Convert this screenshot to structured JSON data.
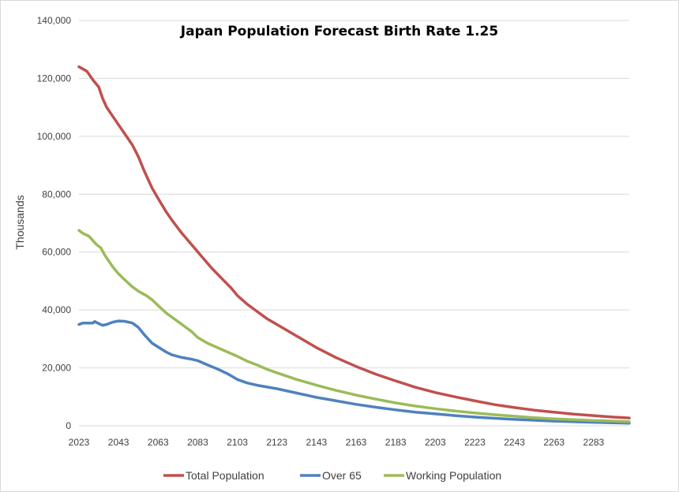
{
  "chart_data": {
    "type": "line",
    "title": "Japan Population Forecast Birth Rate 1.25",
    "xlabel": "",
    "ylabel": "Thousands",
    "xlim": [
      2023,
      2301
    ],
    "ylim": [
      0,
      140000
    ],
    "x_ticks": [
      "2023",
      "2043",
      "2063",
      "2083",
      "2103",
      "2123",
      "2143",
      "2163",
      "2183",
      "2203",
      "2223",
      "2243",
      "2263",
      "2283"
    ],
    "y_ticks": [
      "0",
      "20,000",
      "40,000",
      "60,000",
      "80,000",
      "100,000",
      "120,000",
      "140,000"
    ],
    "legend_position": "bottom",
    "series": [
      {
        "name": "Total Population",
        "color": "#c0504d",
        "points": [
          [
            2023,
            124000
          ],
          [
            2027,
            122500
          ],
          [
            2030,
            119500
          ],
          [
            2033,
            117000
          ],
          [
            2035,
            113000
          ],
          [
            2037,
            110000
          ],
          [
            2040,
            107000
          ],
          [
            2043,
            104000
          ],
          [
            2046,
            101000
          ],
          [
            2050,
            97000
          ],
          [
            2053,
            93000
          ],
          [
            2056,
            88000
          ],
          [
            2060,
            82000
          ],
          [
            2063,
            78500
          ],
          [
            2067,
            74000
          ],
          [
            2070,
            71000
          ],
          [
            2075,
            66500
          ],
          [
            2080,
            62500
          ],
          [
            2085,
            58500
          ],
          [
            2090,
            54500
          ],
          [
            2095,
            51000
          ],
          [
            2100,
            47500
          ],
          [
            2103,
            45000
          ],
          [
            2108,
            42000
          ],
          [
            2113,
            39500
          ],
          [
            2118,
            37000
          ],
          [
            2123,
            35000
          ],
          [
            2133,
            31000
          ],
          [
            2143,
            27000
          ],
          [
            2153,
            23500
          ],
          [
            2163,
            20500
          ],
          [
            2173,
            17800
          ],
          [
            2183,
            15500
          ],
          [
            2193,
            13300
          ],
          [
            2203,
            11500
          ],
          [
            2213,
            10000
          ],
          [
            2223,
            8600
          ],
          [
            2233,
            7300
          ],
          [
            2243,
            6300
          ],
          [
            2253,
            5400
          ],
          [
            2263,
            4700
          ],
          [
            2273,
            4000
          ],
          [
            2283,
            3500
          ],
          [
            2293,
            3000
          ],
          [
            2301,
            2700
          ]
        ]
      },
      {
        "name": "Over 65",
        "color": "#4f81bd",
        "points": [
          [
            2023,
            35000
          ],
          [
            2025,
            35500
          ],
          [
            2030,
            35500
          ],
          [
            2031,
            36000
          ],
          [
            2033,
            35300
          ],
          [
            2035,
            34700
          ],
          [
            2037,
            35000
          ],
          [
            2040,
            35800
          ],
          [
            2043,
            36200
          ],
          [
            2046,
            36100
          ],
          [
            2050,
            35500
          ],
          [
            2053,
            34000
          ],
          [
            2056,
            31500
          ],
          [
            2060,
            28500
          ],
          [
            2063,
            27200
          ],
          [
            2067,
            25500
          ],
          [
            2070,
            24500
          ],
          [
            2075,
            23600
          ],
          [
            2080,
            23000
          ],
          [
            2083,
            22500
          ],
          [
            2088,
            21000
          ],
          [
            2093,
            19600
          ],
          [
            2098,
            18000
          ],
          [
            2103,
            16000
          ],
          [
            2108,
            14800
          ],
          [
            2113,
            14000
          ],
          [
            2123,
            12800
          ],
          [
            2133,
            11300
          ],
          [
            2143,
            9800
          ],
          [
            2153,
            8600
          ],
          [
            2163,
            7400
          ],
          [
            2173,
            6400
          ],
          [
            2183,
            5500
          ],
          [
            2193,
            4700
          ],
          [
            2203,
            4100
          ],
          [
            2213,
            3500
          ],
          [
            2223,
            3000
          ],
          [
            2233,
            2600
          ],
          [
            2243,
            2200
          ],
          [
            2253,
            1900
          ],
          [
            2263,
            1600
          ],
          [
            2273,
            1400
          ],
          [
            2283,
            1200
          ],
          [
            2293,
            1000
          ],
          [
            2301,
            900
          ]
        ]
      },
      {
        "name": "Working Population",
        "color": "#9bbb59",
        "points": [
          [
            2023,
            67500
          ],
          [
            2025,
            66500
          ],
          [
            2028,
            65500
          ],
          [
            2030,
            64000
          ],
          [
            2032,
            62500
          ],
          [
            2034,
            61500
          ],
          [
            2036,
            59000
          ],
          [
            2038,
            57000
          ],
          [
            2040,
            55000
          ],
          [
            2043,
            52500
          ],
          [
            2046,
            50500
          ],
          [
            2050,
            48000
          ],
          [
            2053,
            46500
          ],
          [
            2057,
            45000
          ],
          [
            2060,
            43500
          ],
          [
            2063,
            41500
          ],
          [
            2067,
            39000
          ],
          [
            2070,
            37500
          ],
          [
            2075,
            35000
          ],
          [
            2080,
            32500
          ],
          [
            2083,
            30500
          ],
          [
            2088,
            28500
          ],
          [
            2093,
            27000
          ],
          [
            2098,
            25500
          ],
          [
            2103,
            24000
          ],
          [
            2108,
            22300
          ],
          [
            2113,
            21000
          ],
          [
            2118,
            19500
          ],
          [
            2123,
            18300
          ],
          [
            2133,
            16000
          ],
          [
            2143,
            14000
          ],
          [
            2153,
            12200
          ],
          [
            2163,
            10600
          ],
          [
            2173,
            9200
          ],
          [
            2183,
            7900
          ],
          [
            2193,
            6800
          ],
          [
            2203,
            5900
          ],
          [
            2213,
            5100
          ],
          [
            2223,
            4400
          ],
          [
            2233,
            3800
          ],
          [
            2243,
            3300
          ],
          [
            2253,
            2800
          ],
          [
            2263,
            2400
          ],
          [
            2273,
            2100
          ],
          [
            2283,
            1800
          ],
          [
            2293,
            1600
          ],
          [
            2301,
            1400
          ]
        ]
      }
    ]
  }
}
